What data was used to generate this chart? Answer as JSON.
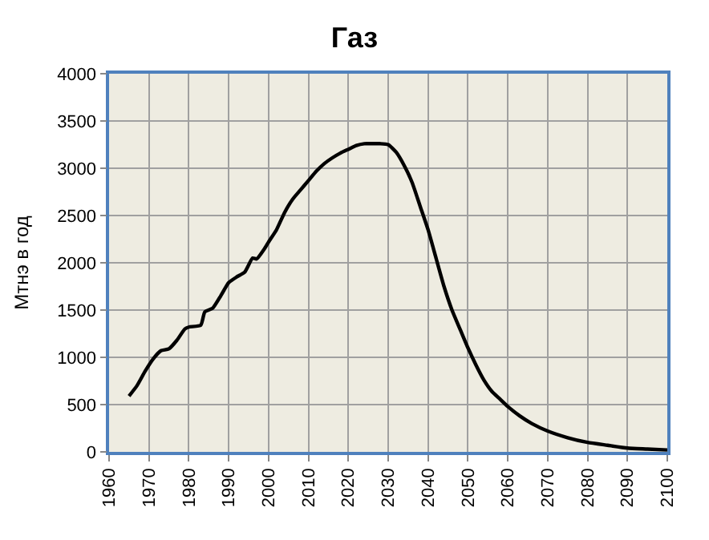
{
  "chart_data": {
    "type": "line",
    "title": "Газ",
    "ylabel": "Мтнэ в год",
    "x": [
      1965,
      1967,
      1969,
      1971,
      1973,
      1975,
      1977,
      1979,
      1980,
      1983,
      1984,
      1986,
      1988,
      1990,
      1992,
      1994,
      1996,
      1997,
      1999,
      2000,
      2002,
      2004,
      2006,
      2008,
      2010,
      2012,
      2014,
      2016,
      2018,
      2020,
      2022,
      2024,
      2026,
      2028,
      2030,
      2032,
      2034,
      2036,
      2038,
      2040,
      2042,
      2044,
      2046,
      2048,
      2050,
      2052,
      2054,
      2056,
      2058,
      2060,
      2063,
      2066,
      2070,
      2075,
      2080,
      2085,
      2090,
      2095,
      2100
    ],
    "series": [
      {
        "color": "#000000",
        "values": [
          590,
          700,
          850,
          980,
          1070,
          1090,
          1180,
          1300,
          1320,
          1340,
          1480,
          1520,
          1650,
          1790,
          1850,
          1900,
          2050,
          2040,
          2150,
          2220,
          2350,
          2530,
          2670,
          2770,
          2870,
          2970,
          3050,
          3110,
          3160,
          3200,
          3240,
          3260,
          3260,
          3260,
          3250,
          3170,
          3030,
          2850,
          2600,
          2350,
          2050,
          1750,
          1500,
          1300,
          1100,
          920,
          760,
          640,
          560,
          480,
          380,
          300,
          220,
          150,
          100,
          70,
          40,
          30,
          20
        ]
      }
    ],
    "xlim": [
      1960,
      2100
    ],
    "xticks": [
      1960,
      1970,
      1980,
      1990,
      2000,
      2010,
      2020,
      2030,
      2040,
      2050,
      2060,
      2070,
      2080,
      2090,
      2100
    ],
    "ylim": [
      0,
      4000
    ],
    "yticks": [
      0,
      500,
      1000,
      1500,
      2000,
      2500,
      3000,
      3500,
      4000
    ],
    "grid": true,
    "marker": "none",
    "line_style": "solid"
  }
}
